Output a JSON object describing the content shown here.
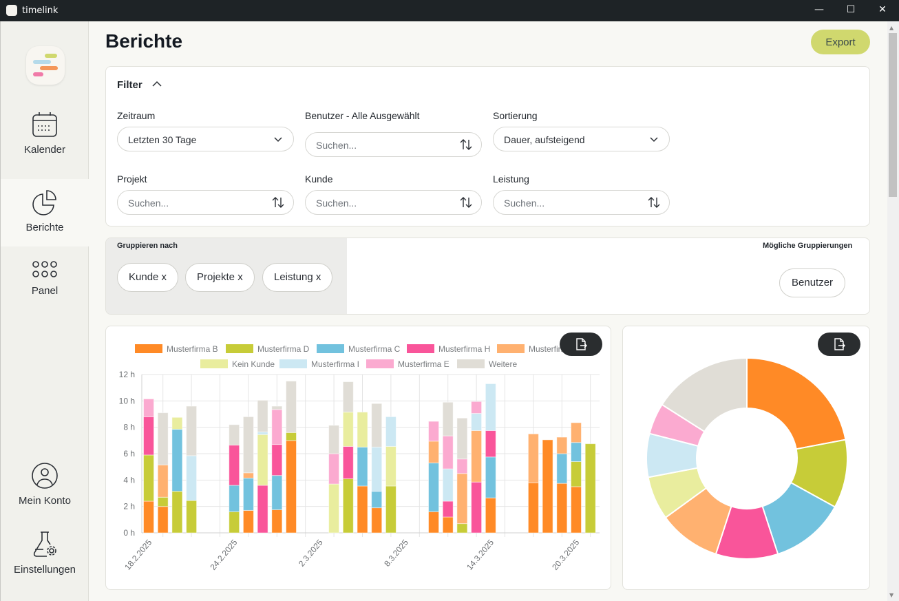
{
  "window": {
    "title": "timelink",
    "minimize": "—",
    "maximize": "☐",
    "close": "✕"
  },
  "sidebar": {
    "items": [
      {
        "label": "Kalender",
        "icon": "calendar-icon"
      },
      {
        "label": "Berichte",
        "icon": "pie-chart-icon",
        "active": true
      },
      {
        "label": "Panel",
        "icon": "grid-icon"
      },
      {
        "label": "Mein Konto",
        "icon": "user-icon"
      },
      {
        "label": "Einstellungen",
        "icon": "flask-gear-icon"
      }
    ]
  },
  "header": {
    "title": "Berichte",
    "export_label": "Export"
  },
  "filter": {
    "title": "Filter",
    "fields": {
      "zeitraum": {
        "label": "Zeitraum",
        "value": "Letzten 30 Tage"
      },
      "benutzer": {
        "label": "Benutzer - Alle Ausgewählt",
        "placeholder": "Suchen..."
      },
      "sortierung": {
        "label": "Sortierung",
        "value": "Dauer, aufsteigend"
      },
      "projekt": {
        "label": "Projekt",
        "placeholder": "Suchen..."
      },
      "kunde": {
        "label": "Kunde",
        "placeholder": "Suchen..."
      },
      "leistung": {
        "label": "Leistung",
        "placeholder": "Suchen..."
      }
    }
  },
  "grouping": {
    "title": "Gruppieren nach",
    "chips": [
      "Kunde x",
      "Projekte x",
      "Leistung x"
    ],
    "available_title": "Mögliche Gruppierungen",
    "available": [
      "Benutzer"
    ]
  },
  "chart_data": [
    {
      "type": "bar",
      "stacked": true,
      "title": "",
      "xlabel": "",
      "ylabel": "",
      "ylim": [
        0,
        12
      ],
      "yticks": [
        "0 h",
        "2 h",
        "4 h",
        "6 h",
        "8 h",
        "10 h",
        "12 h"
      ],
      "xtick_labels": [
        "18.2.2025",
        "24.2.2025",
        "2.3.2025",
        "8.3.2025",
        "14.3.2025",
        "20.3.2025"
      ],
      "xtick_day_index": [
        0,
        6,
        12,
        18,
        24,
        30
      ],
      "day_index": [
        0,
        1,
        2,
        3,
        6,
        7,
        8,
        9,
        10,
        13,
        14,
        15,
        16,
        17,
        20,
        21,
        22,
        23,
        24,
        27,
        28,
        29,
        30,
        31
      ],
      "categories": [
        "18.2.2025",
        "19.2.2025",
        "20.2.2025",
        "21.2.2025",
        "24.2.2025",
        "25.2.2025",
        "26.2.2025",
        "27.2.2025",
        "28.2.2025",
        "3.3.2025",
        "4.3.2025",
        "5.3.2025",
        "6.3.2025",
        "7.3.2025",
        "10.3.2025",
        "11.3.2025",
        "12.3.2025",
        "13.3.2025",
        "14.3.2025",
        "17.3.2025",
        "18.3.2025",
        "19.3.2025",
        "20.3.2025",
        "21.3.2025"
      ],
      "legend": "top",
      "series": [
        {
          "name": "Musterfirma B",
          "color": "#ff8a26",
          "values": [
            2.4,
            2.0,
            0,
            0,
            0,
            1.7,
            0,
            1.75,
            7.0,
            0,
            0,
            3.55,
            1.9,
            0,
            1.6,
            1.2,
            0,
            0,
            2.65,
            3.8,
            7.05,
            3.75,
            3.5,
            0
          ]
        },
        {
          "name": "Musterfirma D",
          "color": "#c7cc38",
          "values": [
            3.5,
            0.7,
            3.15,
            2.45,
            1.6,
            0,
            0,
            0,
            0.6,
            0,
            4.1,
            0,
            0,
            3.55,
            0,
            0,
            0.7,
            0,
            0,
            0,
            0,
            0,
            1.9,
            6.75
          ]
        },
        {
          "name": "Musterfirma C",
          "color": "#72c2de",
          "values": [
            0,
            0,
            4.7,
            0,
            2.0,
            2.45,
            0,
            2.6,
            0,
            0,
            0,
            2.95,
            1.25,
            0,
            3.7,
            0,
            0,
            0,
            3.1,
            0,
            0,
            2.25,
            1.45,
            0
          ]
        },
        {
          "name": "Musterfirma H",
          "color": "#f9559a",
          "values": [
            2.9,
            0,
            0,
            0,
            3.05,
            0,
            3.6,
            2.35,
            0,
            0,
            2.45,
            0,
            0,
            0,
            0,
            1.2,
            0,
            3.85,
            2.0,
            0,
            0,
            0,
            0,
            0
          ]
        },
        {
          "name": "Musterfirma F",
          "color": "#ffb170",
          "values": [
            0,
            2.45,
            0,
            0,
            0,
            0.4,
            0,
            0,
            0,
            0,
            0,
            0,
            0,
            0,
            1.65,
            0,
            3.8,
            3.9,
            0,
            3.7,
            0,
            1.25,
            1.5,
            0
          ]
        },
        {
          "name": "Kein Kunde",
          "color": "#e9ed9e",
          "values": [
            0,
            0,
            0.9,
            0,
            0,
            0,
            3.85,
            0,
            0,
            3.7,
            2.6,
            2.65,
            0,
            3.0,
            0,
            0,
            0,
            0,
            0,
            0,
            0,
            0,
            0,
            0
          ]
        },
        {
          "name": "Musterfirma I",
          "color": "#cce8f3",
          "values": [
            0,
            0,
            0,
            3.4,
            0,
            0,
            0.2,
            0,
            0,
            0,
            0,
            0,
            3.35,
            2.25,
            0,
            2.45,
            0,
            1.3,
            3.55,
            0,
            0,
            0,
            0,
            0
          ]
        },
        {
          "name": "Musterfirma E",
          "color": "#fbaad0",
          "values": [
            1.35,
            0,
            0,
            0,
            0,
            0,
            0,
            2.65,
            0,
            2.3,
            0,
            0,
            0,
            0,
            1.5,
            2.5,
            1.1,
            0.9,
            0,
            0,
            0,
            0,
            0,
            0
          ]
        },
        {
          "name": "Weitere",
          "color": "#e0ddd6",
          "values": [
            0,
            3.95,
            0,
            3.75,
            1.55,
            4.25,
            2.4,
            0.25,
            3.9,
            2.15,
            2.3,
            0,
            3.3,
            0,
            0,
            2.55,
            3.1,
            0,
            0,
            0,
            0,
            0,
            0,
            0
          ]
        }
      ]
    },
    {
      "type": "pie",
      "donut": true,
      "title": "",
      "labels": [
        "Musterfirma B",
        "Musterfirma D",
        "Musterfirma C",
        "Musterfirma H",
        "Musterfirma F",
        "Kein Kunde",
        "Musterfirma I",
        "Musterfirma E",
        "Weitere"
      ],
      "values": [
        22,
        11,
        12,
        10,
        10,
        7,
        7,
        5,
        16
      ],
      "colors": [
        "#ff8a26",
        "#c7cc38",
        "#72c2de",
        "#f9559a",
        "#ffb170",
        "#e9ed9e",
        "#cce8f3",
        "#fbaad0",
        "#e0ddd6"
      ]
    }
  ]
}
